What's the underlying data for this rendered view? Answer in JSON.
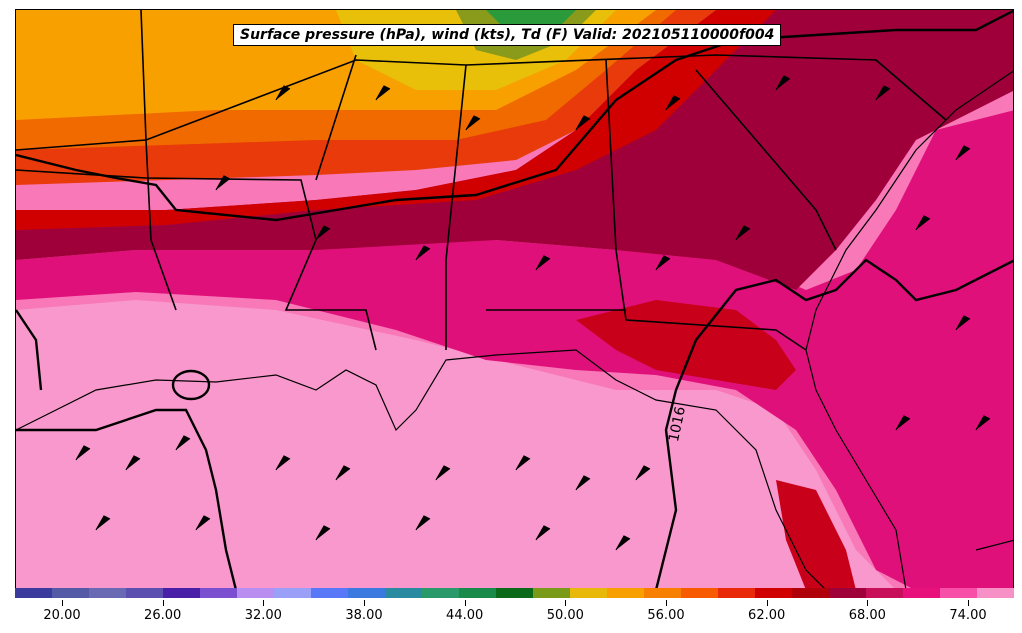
{
  "title": "Surface pressure (hPa), wind (kts), Td (F) Valid: 202105110000f004",
  "isobar_label": "1016",
  "colorbar": {
    "tick_labels": [
      "20.00",
      "26.00",
      "32.00",
      "38.00",
      "44.00",
      "50.00",
      "56.00",
      "62.00",
      "68.00",
      "74.00"
    ],
    "colors": [
      "#3b3b9e",
      "#555aa6",
      "#6a6ab4",
      "#5b4fb0",
      "#4a1fa8",
      "#7a4fd0",
      "#b88ff0",
      "#9a9ff8",
      "#5878f8",
      "#3a7ae0",
      "#2a8aa0",
      "#2a9a6a",
      "#1a8a4a",
      "#0b6a1a",
      "#7a9a1a",
      "#e8b80a",
      "#f8a000",
      "#f88000",
      "#f85a00",
      "#e82a0a",
      "#d00000",
      "#b0000a",
      "#a0003a",
      "#c8105a",
      "#e8107a",
      "#f850a8",
      "#f890c8"
    ]
  },
  "map": {
    "colors": {
      "dry_green": "#2a9a3a",
      "olive": "#8a9a1a",
      "yellow": "#e8c00a",
      "orange": "#f8a000",
      "dark_orange": "#f06a00",
      "red_orange": "#e83a0a",
      "red": "#d00000",
      "dark_red": "#b0000a",
      "maroon": "#a0003a",
      "magenta": "#e0107a",
      "pink": "#f870b8",
      "light_pink": "#f898cc"
    }
  }
}
